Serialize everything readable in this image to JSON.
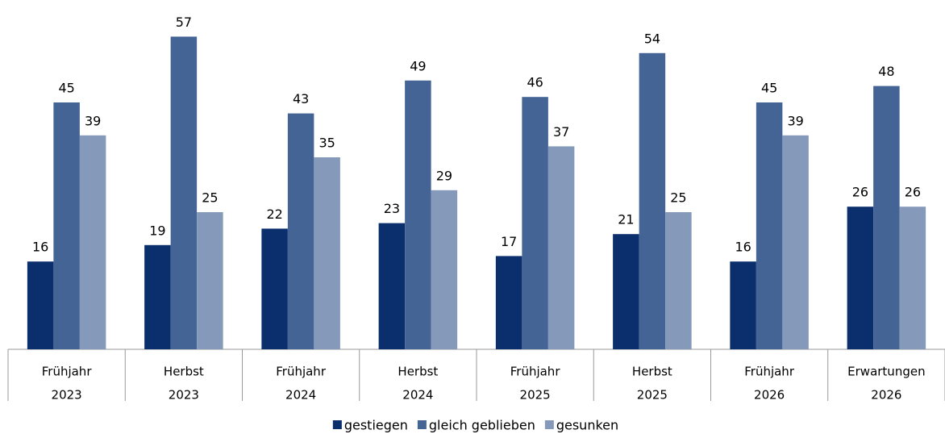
{
  "chart_data": {
    "type": "bar",
    "categories": [
      [
        "Frühjahr",
        "2023"
      ],
      [
        "Herbst",
        "2023"
      ],
      [
        "Frühjahr",
        "2024"
      ],
      [
        "Herbst",
        "2024"
      ],
      [
        "Frühjahr",
        "2025"
      ],
      [
        "Herbst",
        "2025"
      ],
      [
        "Frühjahr",
        "2026"
      ],
      [
        "Erwartungen",
        "2026"
      ]
    ],
    "series": [
      {
        "name": "gestiegen",
        "color": "#0b2e6c",
        "values": [
          16,
          19,
          22,
          23,
          17,
          21,
          16,
          26
        ]
      },
      {
        "name": "gleich geblieben",
        "color": "#446495",
        "values": [
          45,
          57,
          43,
          49,
          46,
          54,
          45,
          48
        ]
      },
      {
        "name": "gesunken",
        "color": "#8599bb",
        "values": [
          39,
          25,
          35,
          29,
          37,
          25,
          39,
          26
        ]
      }
    ],
    "legend": "bottom"
  }
}
